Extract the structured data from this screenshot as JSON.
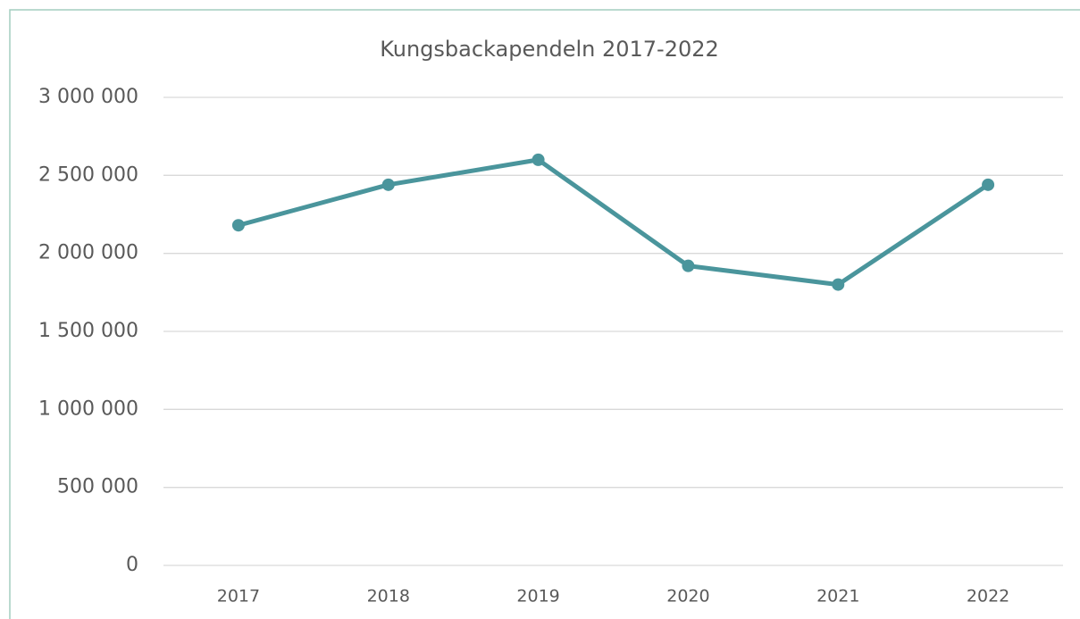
{
  "chart_data": {
    "type": "line",
    "title": "Kungsbackapendeln 2017-2022",
    "categories": [
      "2017",
      "2018",
      "2019",
      "2020",
      "2021",
      "2022"
    ],
    "series": [
      {
        "name": "Kungsbackapendeln",
        "color": "#4a959c",
        "values": [
          2180000,
          2440000,
          2600000,
          1920000,
          1800000,
          2440000
        ]
      }
    ],
    "ylim": [
      0,
      3000000
    ],
    "yticks": [
      0,
      {
        "value": 500000,
        "label": "500 000"
      },
      {
        "value": 1000000,
        "label": "1 000 000"
      },
      {
        "value": 1500000,
        "label": "1 500 000"
      },
      {
        "value": 2000000,
        "label": "2 000 000"
      },
      {
        "value": 2500000,
        "label": "2 500 000"
      },
      {
        "value": 3000000,
        "label": "3 000 000"
      }
    ],
    "grid": true
  }
}
